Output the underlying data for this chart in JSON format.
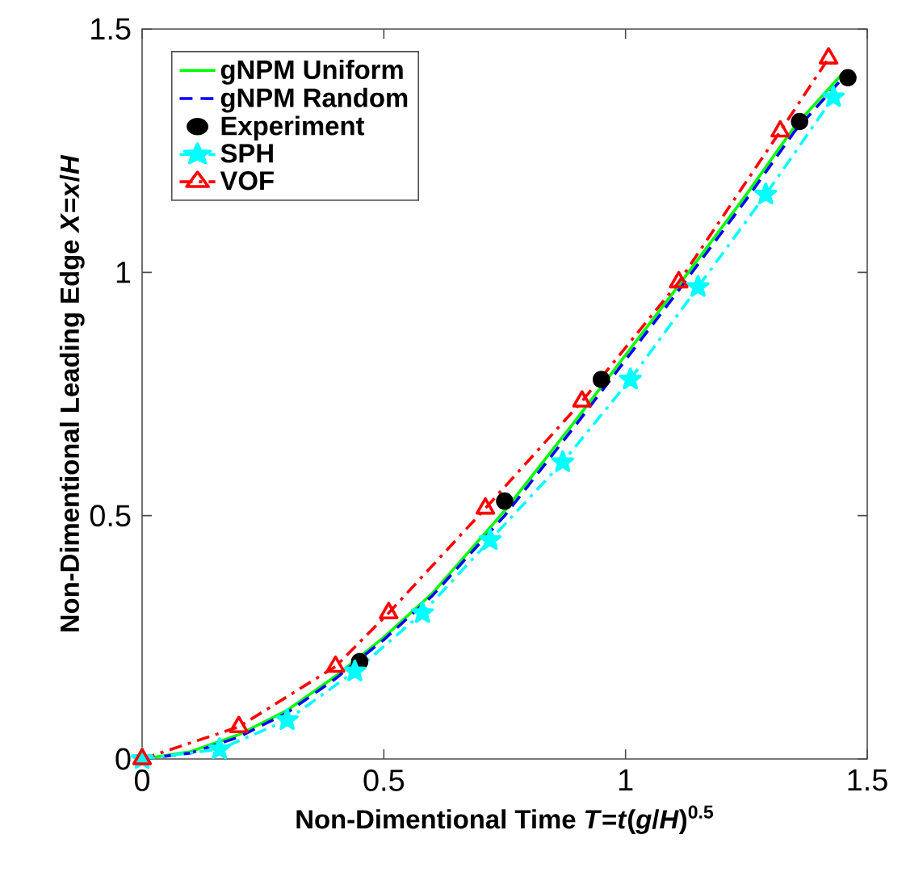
{
  "chart_data": {
    "type": "line",
    "xlabel": "Non-Dimentional Time *T*=*t*(*g*/*H*)$^{0.5}$",
    "ylabel": "Non-Dimentional Leading Edge *X*=*x*/*H*",
    "xlim": [
      0,
      1.5
    ],
    "ylim": [
      0,
      1.5
    ],
    "xticks": [
      0,
      0.5,
      1,
      1.5
    ],
    "yticks": [
      0,
      0.5,
      1,
      1.5
    ],
    "legend": "top left",
    "series": [
      {
        "name": "gNPM Uniform",
        "color": "#00ff00",
        "line_style": "solid",
        "marker": "none",
        "x": [
          0,
          0.1,
          0.2,
          0.3,
          0.4,
          0.5,
          0.6,
          0.75,
          0.9,
          1.0,
          1.1,
          1.25,
          1.35,
          1.45
        ],
        "values": [
          0,
          0.015,
          0.05,
          0.1,
          0.17,
          0.25,
          0.34,
          0.51,
          0.7,
          0.83,
          0.96,
          1.16,
          1.3,
          1.41
        ]
      },
      {
        "name": "gNPM Random",
        "color": "#0000ff",
        "line_style": "dashed",
        "marker": "none",
        "x": [
          0,
          0.1,
          0.2,
          0.3,
          0.4,
          0.5,
          0.6,
          0.75,
          0.9,
          1.0,
          1.1,
          1.25,
          1.35,
          1.45
        ],
        "values": [
          0,
          0.012,
          0.045,
          0.095,
          0.165,
          0.245,
          0.335,
          0.5,
          0.69,
          0.82,
          0.95,
          1.15,
          1.29,
          1.4
        ]
      },
      {
        "name": "Experiment",
        "type": "scatter",
        "color": "#000000",
        "marker": "circle",
        "x": [
          0.45,
          0.75,
          0.95,
          1.36,
          1.46
        ],
        "values": [
          0.2,
          0.53,
          0.78,
          1.31,
          1.4
        ]
      },
      {
        "name": "SPH",
        "color": "#00ffff",
        "line_style": "dashdot",
        "marker": "star",
        "x": [
          0,
          0.16,
          0.3,
          0.44,
          0.58,
          0.72,
          0.87,
          1.01,
          1.15,
          1.29,
          1.43
        ],
        "values": [
          0,
          0.02,
          0.08,
          0.18,
          0.3,
          0.45,
          0.61,
          0.78,
          0.97,
          1.16,
          1.36
        ]
      },
      {
        "name": "VOF",
        "color": "#ff0000",
        "line_style": "dashdot",
        "marker": "triangle",
        "x": [
          0,
          0.2,
          0.4,
          0.51,
          0.71,
          0.91,
          1.11,
          1.32,
          1.42
        ],
        "values": [
          0,
          0.066,
          0.19,
          0.3,
          0.515,
          0.735,
          0.98,
          1.29,
          1.44
        ]
      }
    ]
  }
}
